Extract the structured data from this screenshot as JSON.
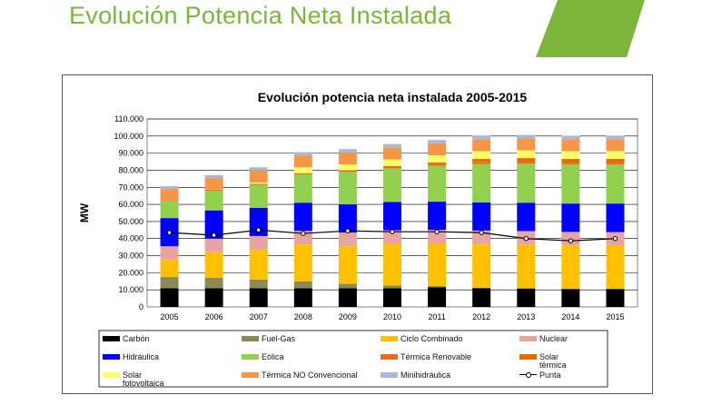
{
  "slide": {
    "title": "Evolución Potencia Neta Instalada",
    "accent_color": "#7db53b"
  },
  "chart_data": {
    "type": "bar",
    "stacked": true,
    "title": "Evolución potencia neta instalada 2005-2015",
    "xlabel": "",
    "ylabel": "MW",
    "ylim": [
      0,
      110000
    ],
    "yticks": [
      "0",
      "10.000",
      "20.000",
      "30.000",
      "40.000",
      "50.000",
      "60.000",
      "70.000",
      "80.000",
      "90.000",
      "100.000",
      "110.000"
    ],
    "grid": true,
    "legend_position": "bottom",
    "categories": [
      "2005",
      "2006",
      "2007",
      "2008",
      "2009",
      "2010",
      "2011",
      "2012",
      "2013",
      "2014",
      "2015"
    ],
    "series": [
      {
        "name": "Carbón",
        "color": "#000000",
        "values": [
          11000,
          11000,
          11000,
          11000,
          11000,
          11000,
          11500,
          11000,
          10800,
          10500,
          10500
        ]
      },
      {
        "name": "Fuel-Gas",
        "color": "#8b8a57",
        "values": [
          6500,
          6000,
          5000,
          4000,
          2500,
          1500,
          700,
          300,
          200,
          200,
          200
        ]
      },
      {
        "name": "Ciclo Combinado",
        "color": "#ffc000",
        "values": [
          10000,
          15000,
          17500,
          21500,
          22000,
          24500,
          25000,
          25500,
          25500,
          25300,
          25200
        ]
      },
      {
        "name": "Nuclear",
        "color": "#e6a5a0",
        "values": [
          8000,
          8000,
          8000,
          8000,
          8000,
          7900,
          7900,
          7900,
          7900,
          7900,
          7900
        ]
      },
      {
        "name": "Hidráulica",
        "color": "#0000ff",
        "values": [
          16500,
          16500,
          16500,
          16500,
          16500,
          16500,
          16500,
          16500,
          16600,
          16600,
          16700
        ]
      },
      {
        "name": "Eólica",
        "color": "#92d050",
        "values": [
          10000,
          11500,
          13500,
          16500,
          19000,
          19700,
          21000,
          22500,
          22800,
          22800,
          22800
        ]
      },
      {
        "name": "Térmica Renovable",
        "color": "#f26522",
        "values": [
          500,
          550,
          600,
          700,
          750,
          800,
          900,
          950,
          1000,
          1000,
          1000
        ]
      },
      {
        "name": "Solar térmica",
        "color": "#e36c0a",
        "values": [
          0,
          0,
          10,
          60,
          230,
          630,
          1000,
          1950,
          2300,
          2300,
          2300
        ]
      },
      {
        "name": "Solar fotovoltaica",
        "color": "#ffff66",
        "values": [
          50,
          150,
          700,
          3400,
          3400,
          3800,
          4200,
          4500,
          4500,
          4500,
          4600
        ]
      },
      {
        "name": "Térmica NO Convencional",
        "color": "#f79646",
        "values": [
          6500,
          6700,
          7000,
          7000,
          7000,
          7000,
          7000,
          7000,
          7000,
          7000,
          7000
        ]
      },
      {
        "name": "Minihidráulica",
        "color": "#a6b9d8",
        "values": [
          1600,
          1800,
          1900,
          1900,
          2000,
          2000,
          2000,
          2000,
          2000,
          2050,
          2050
        ]
      }
    ],
    "line_series": {
      "name": "Punta",
      "color": "#000000",
      "values": [
        43500,
        42000,
        45000,
        43000,
        44500,
        44000,
        44000,
        43500,
        40000,
        38700,
        40000
      ]
    }
  }
}
